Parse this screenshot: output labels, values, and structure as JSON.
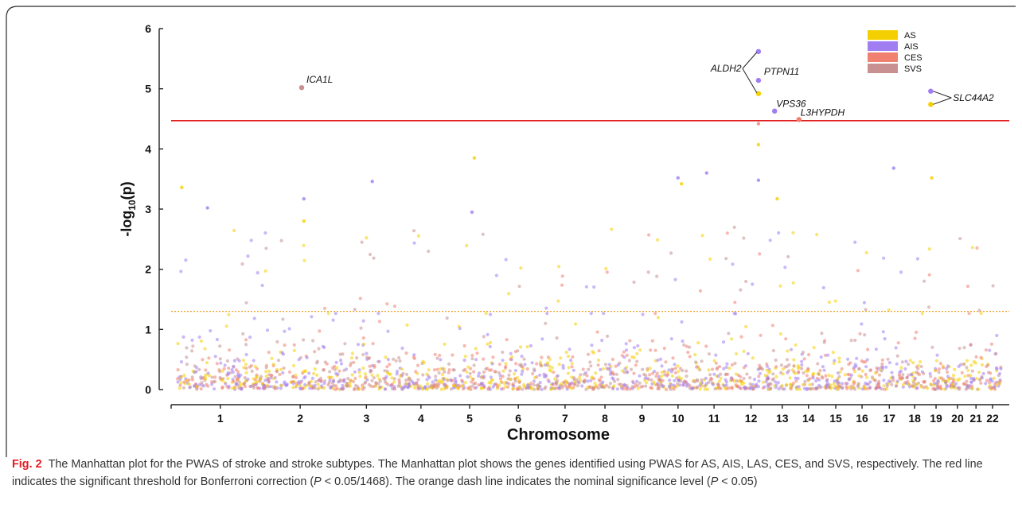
{
  "figure": {
    "label": "Fig. 2",
    "caption_title": "The Manhattan plot for the PWAS of stroke and stroke subtypes.",
    "caption_text_1": "The Manhattan plot shows the genes identified using PWAS for AS, AIS, LAS, CES, and SVS, respectively. The red line indicates the significant threshold for Bonferroni correction (",
    "caption_p1": "P",
    "caption_text_2": " < 0.05/1468). The orange dash line indicates the nominal significance level (",
    "caption_p2": "P",
    "caption_text_3": " < 0.05)"
  },
  "colors": {
    "AS": "#f5d000",
    "AIS": "#a07ef2",
    "CES": "#f08070",
    "SVS": "#c89090",
    "bonferroni_line": "#e02020",
    "nominal_line": "#f0a020",
    "frame": "#2a2a2a"
  },
  "chart_data": {
    "type": "scatter",
    "xlabel": "Chromosome",
    "ylabel": "-log10(p)",
    "ylabel_main": "-log",
    "ylabel_sub": "10",
    "ylabel_tail": "(p)",
    "ylim": [
      0,
      6
    ],
    "yticks": [
      0,
      1,
      2,
      3,
      4,
      5,
      6
    ],
    "chromosomes": [
      "1",
      "2",
      "3",
      "4",
      "5",
      "6",
      "7",
      "8",
      "9",
      "10",
      "11",
      "12",
      "13",
      "14",
      "15",
      "16",
      "17",
      "18",
      "19",
      "20",
      "21",
      "22"
    ],
    "chromosome_widths": [
      2.2,
      1.9,
      1.5,
      1.3,
      1.2,
      1.3,
      1.1,
      0.95,
      0.95,
      0.9,
      0.95,
      0.95,
      0.65,
      0.7,
      0.7,
      0.65,
      0.75,
      0.55,
      0.55,
      0.55,
      0.4,
      0.45
    ],
    "bonferroni_threshold": 4.47,
    "nominal_threshold": 1.3,
    "legend": {
      "position": "top-right",
      "entries": [
        "AS",
        "AIS",
        "CES",
        "SVS"
      ]
    },
    "labeled_hits": [
      {
        "gene": "ICA1L",
        "chromosome": "2",
        "pos": 0.52,
        "y": 5.02,
        "subtype": "SVS"
      },
      {
        "gene": "ALDH2",
        "chromosome": "12",
        "pos": 0.7,
        "y": 5.62,
        "subtype": "AIS"
      },
      {
        "gene": "PTPN11",
        "chromosome": "12",
        "pos": 0.7,
        "y": 5.14,
        "subtype": "AIS"
      },
      {
        "gene": "",
        "chromosome": "12",
        "pos": 0.7,
        "y": 4.92,
        "subtype": "AS"
      },
      {
        "gene": "VPS36",
        "chromosome": "13",
        "pos": 0.2,
        "y": 4.63,
        "subtype": "AIS"
      },
      {
        "gene": "L3HYPDH",
        "chromosome": "14",
        "pos": 0.15,
        "y": 4.49,
        "subtype": "CES"
      },
      {
        "gene": "SLC44A2",
        "chromosome": "19",
        "pos": 0.25,
        "y": 4.96,
        "subtype": "AIS"
      },
      {
        "gene": "",
        "chromosome": "19",
        "pos": 0.25,
        "y": 4.74,
        "subtype": "AS"
      }
    ],
    "notable_points": [
      {
        "chromosome": "1",
        "pos": 0.05,
        "y": 3.36,
        "subtype": "AS"
      },
      {
        "chromosome": "1",
        "pos": 0.35,
        "y": 3.02,
        "subtype": "AIS"
      },
      {
        "chromosome": "2",
        "pos": 0.55,
        "y": 3.17,
        "subtype": "AIS"
      },
      {
        "chromosome": "2",
        "pos": 0.55,
        "y": 2.8,
        "subtype": "AS"
      },
      {
        "chromosome": "3",
        "pos": 0.6,
        "y": 3.46,
        "subtype": "AIS"
      },
      {
        "chromosome": "5",
        "pos": 0.6,
        "y": 3.85,
        "subtype": "AS"
      },
      {
        "chromosome": "5",
        "pos": 0.55,
        "y": 2.95,
        "subtype": "AIS"
      },
      {
        "chromosome": "10",
        "pos": 0.5,
        "y": 3.52,
        "subtype": "AIS"
      },
      {
        "chromosome": "10",
        "pos": 0.6,
        "y": 3.42,
        "subtype": "AS"
      },
      {
        "chromosome": "11",
        "pos": 0.3,
        "y": 3.6,
        "subtype": "AIS"
      },
      {
        "chromosome": "12",
        "pos": 0.7,
        "y": 4.42,
        "subtype": "CES"
      },
      {
        "chromosome": "12",
        "pos": 0.7,
        "y": 4.07,
        "subtype": "AS"
      },
      {
        "chromosome": "12",
        "pos": 0.7,
        "y": 3.48,
        "subtype": "AIS"
      },
      {
        "chromosome": "13",
        "pos": 0.3,
        "y": 3.17,
        "subtype": "AS"
      },
      {
        "chromosome": "17",
        "pos": 0.65,
        "y": 3.68,
        "subtype": "AIS"
      },
      {
        "chromosome": "19",
        "pos": 0.3,
        "y": 3.52,
        "subtype": "AS"
      }
    ],
    "background_points_per_chromosome_unit": 95
  }
}
